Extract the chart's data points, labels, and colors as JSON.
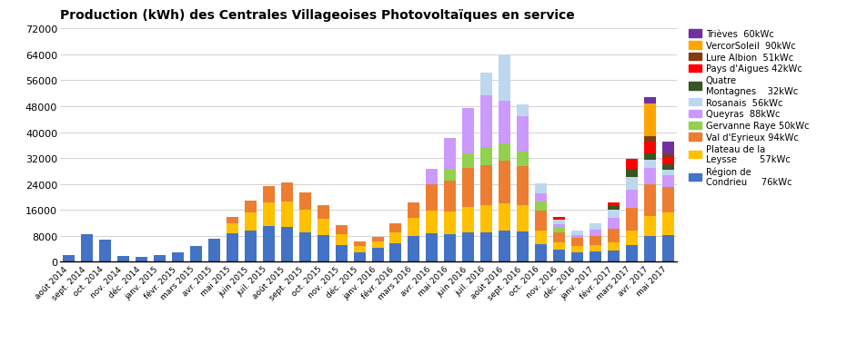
{
  "title": "Production (kWh) des Centrales Villageoises Photovoltaïques en service",
  "categories": [
    "août 2014",
    "sept. 2014",
    "oct. 2014",
    "nov. 2014",
    "déc. 2014",
    "janv. 2015",
    "févr. 2015",
    "mars 2015",
    "avr. 2015",
    "mai 2015",
    "juin 2015",
    "juil. 2015",
    "août 2015",
    "sept. 2015",
    "oct. 2015",
    "nov. 2015",
    "déc. 2015",
    "janv. 2016",
    "févr. 2016",
    "mars 2016",
    "avr. 2016",
    "mai 2016",
    "juin 2016",
    "juil. 2016",
    "août 2016",
    "sept. 2016",
    "oct. 2016",
    "nov. 2016",
    "déc. 2016",
    "janv. 2017",
    "févr. 2017",
    "mars 2017",
    "avr. 2017",
    "mai 2017"
  ],
  "series": [
    {
      "name": "Région de Condrieu",
      "color": "#4472C4",
      "values": [
        2200,
        8500,
        6800,
        1800,
        1500,
        2000,
        2800,
        5000,
        7200,
        8800,
        9600,
        11000,
        10800,
        9200,
        8200,
        5200,
        3000,
        4200,
        5800,
        8000,
        8800,
        8400,
        9000,
        9200,
        9600,
        9400,
        5500,
        3800,
        3000,
        3200,
        3600,
        5200,
        8000,
        8200
      ]
    },
    {
      "name": "Plateau de la Leysse",
      "color": "#FFC000",
      "values": [
        0,
        0,
        0,
        0,
        0,
        0,
        0,
        0,
        0,
        3200,
        5600,
        7200,
        7800,
        7000,
        5200,
        3200,
        1800,
        2000,
        3200,
        5500,
        7000,
        7200,
        8000,
        8200,
        8500,
        8000,
        4200,
        2200,
        1800,
        2000,
        2500,
        4500,
        6000,
        7000
      ]
    },
    {
      "name": "Val d'Eyrieux",
      "color": "#ED7D31",
      "values": [
        0,
        0,
        0,
        0,
        0,
        0,
        0,
        0,
        0,
        1800,
        3800,
        5200,
        5800,
        5200,
        4200,
        2800,
        1500,
        1500,
        2800,
        4800,
        8000,
        9500,
        12000,
        12500,
        13000,
        12000,
        6000,
        3200,
        2500,
        2800,
        4000,
        7000,
        10000,
        8000
      ]
    },
    {
      "name": "Gervanne Raye",
      "color": "#92D050",
      "values": [
        0,
        0,
        0,
        0,
        0,
        0,
        0,
        0,
        0,
        0,
        0,
        0,
        0,
        0,
        0,
        0,
        0,
        0,
        0,
        0,
        0,
        3500,
        4500,
        5500,
        5500,
        4500,
        3000,
        1200,
        0,
        0,
        0,
        0,
        0,
        0
      ]
    },
    {
      "name": "Queyras",
      "color": "#CC99FF",
      "values": [
        0,
        0,
        0,
        0,
        0,
        0,
        0,
        0,
        0,
        0,
        0,
        0,
        0,
        0,
        0,
        0,
        0,
        0,
        0,
        0,
        5000,
        9500,
        14000,
        16000,
        13000,
        11000,
        2500,
        1200,
        1000,
        2000,
        3500,
        5500,
        5000,
        3500
      ]
    },
    {
      "name": "Rosanais",
      "color": "#BDD7EE",
      "values": [
        0,
        0,
        0,
        0,
        0,
        0,
        0,
        0,
        0,
        0,
        0,
        0,
        0,
        0,
        0,
        0,
        0,
        0,
        0,
        0,
        0,
        0,
        0,
        7000,
        14000,
        3500,
        3000,
        1500,
        1200,
        1800,
        2500,
        4000,
        2500,
        1800
      ]
    },
    {
      "name": "Quatre Montagnes",
      "color": "#375623",
      "values": [
        0,
        0,
        0,
        0,
        0,
        0,
        0,
        0,
        0,
        0,
        0,
        0,
        0,
        0,
        0,
        0,
        0,
        0,
        0,
        0,
        0,
        0,
        0,
        0,
        0,
        0,
        0,
        0,
        0,
        0,
        1000,
        2500,
        2000,
        1500
      ]
    },
    {
      "name": "Pays d'Aigues",
      "color": "#FF0000",
      "values": [
        0,
        0,
        0,
        0,
        0,
        0,
        0,
        0,
        0,
        0,
        0,
        0,
        0,
        0,
        0,
        0,
        0,
        0,
        0,
        0,
        0,
        0,
        0,
        0,
        0,
        0,
        0,
        600,
        0,
        0,
        1200,
        3000,
        3500,
        2000
      ]
    },
    {
      "name": "Lure Albion",
      "color": "#843C0C",
      "values": [
        0,
        0,
        0,
        0,
        0,
        0,
        0,
        0,
        0,
        0,
        0,
        0,
        0,
        0,
        0,
        0,
        0,
        0,
        0,
        0,
        0,
        0,
        0,
        0,
        0,
        0,
        0,
        0,
        0,
        0,
        0,
        0,
        1800,
        1200
      ]
    },
    {
      "name": "VercorSoleil",
      "color": "#FFA500",
      "values": [
        0,
        0,
        0,
        0,
        0,
        0,
        0,
        0,
        0,
        0,
        0,
        0,
        0,
        0,
        0,
        0,
        0,
        0,
        0,
        0,
        0,
        0,
        0,
        0,
        0,
        0,
        0,
        0,
        0,
        0,
        0,
        0,
        10000,
        0
      ]
    },
    {
      "name": "Trièves",
      "color": "#7030A0",
      "values": [
        0,
        0,
        0,
        0,
        0,
        0,
        0,
        0,
        0,
        0,
        0,
        0,
        0,
        0,
        0,
        0,
        0,
        0,
        0,
        0,
        0,
        0,
        0,
        0,
        0,
        0,
        0,
        0,
        0,
        0,
        0,
        0,
        2000,
        4000
      ]
    }
  ],
  "legend_entries": [
    {
      "label": "Trièves  60kWc",
      "color": "#7030A0"
    },
    {
      "label": "VercorSoleil  90kWc",
      "color": "#FFA500"
    },
    {
      "label": "Lure Albion  51kWc",
      "color": "#843C0C"
    },
    {
      "label": "Pays d'Aigues 42kWc",
      "color": "#FF0000"
    },
    {
      "label": "Quatre\nMontagnes    32kWc",
      "color": "#375623"
    },
    {
      "label": "Rosanais  56kWc",
      "color": "#BDD7EE"
    },
    {
      "label": "Queyras  88kWc",
      "color": "#CC99FF"
    },
    {
      "label": "Gervanne Raye 50kWc",
      "color": "#92D050"
    },
    {
      "label": "Val d'Eyrieux 94kWc",
      "color": "#ED7D31"
    },
    {
      "label": "Plateau de la\nLeysse        57kWc",
      "color": "#FFC000"
    },
    {
      "label": "Région de\nCondrieu     76kWc",
      "color": "#4472C4"
    }
  ],
  "ylim": [
    0,
    72000
  ],
  "yticks": [
    0,
    8000,
    16000,
    24000,
    32000,
    40000,
    48000,
    56000,
    64000,
    72000
  ],
  "background_color": "#FFFFFF",
  "grid_color": "#C0C0C0",
  "figsize": [
    9.42,
    4.02
  ],
  "dpi": 100
}
